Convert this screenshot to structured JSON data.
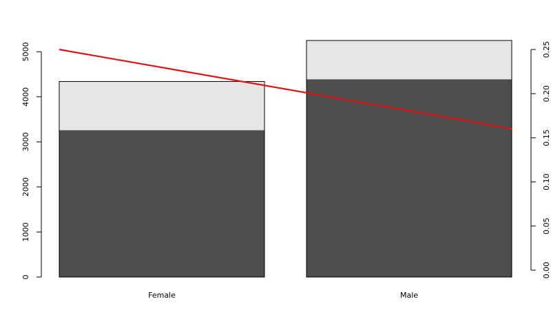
{
  "chart_data": {
    "type": "bar",
    "stacked": true,
    "categories": [
      "Female",
      "Male"
    ],
    "series": [
      {
        "values": [
          3260,
          4390
        ],
        "color": "#4d4d4d"
      },
      {
        "values": [
          1080,
          860
        ],
        "color": "#e6e6e6"
      }
    ],
    "line": {
      "axis": "right",
      "values": [
        0.25,
        0.163
      ],
      "color": "#dd1111"
    },
    "left_axis": {
      "ylim": [
        0,
        5050
      ],
      "ticks": [
        "0",
        "1000",
        "2000",
        "3000",
        "4000",
        "5000"
      ]
    },
    "right_axis": {
      "ylim": [
        0,
        0.25
      ],
      "ticks": [
        "0.00",
        "0.05",
        "0.10",
        "0.15",
        "0.20",
        "0.25"
      ]
    },
    "title": "",
    "xlabel": "",
    "ylabel": "",
    "grid": false,
    "legend": false
  }
}
